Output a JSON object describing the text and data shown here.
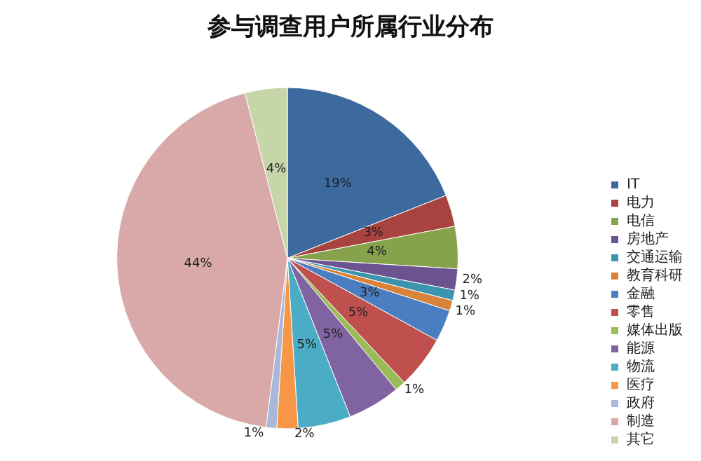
{
  "chart_data": {
    "type": "pie",
    "title": "参与调查用户所属行业分布",
    "categories": [
      "IT",
      "电力",
      "电信",
      "房地产",
      "交通运输",
      "教育科研",
      "金融",
      "零售",
      "媒体出版",
      "能源",
      "物流",
      "医疗",
      "政府",
      "制造",
      "其它"
    ],
    "values": [
      19,
      3,
      4,
      2,
      1,
      1,
      3,
      5,
      1,
      5,
      5,
      2,
      1,
      44,
      4
    ],
    "colors": [
      "#3d6a9e",
      "#a84340",
      "#86a24a",
      "#6b5290",
      "#3d95ad",
      "#d9833a",
      "#4a7ec0",
      "#c0504d",
      "#9bbb59",
      "#8064a2",
      "#4bacc6",
      "#f79646",
      "#a9b8d8",
      "#d8a9a8",
      "#c6d6a8"
    ],
    "value_labels": [
      "19%",
      "3%",
      "4%",
      "2%",
      "1%",
      "1%",
      "3%",
      "5%",
      "1%",
      "5%",
      "5%",
      "2%",
      "1%",
      "44%",
      "4%"
    ],
    "legend": "right"
  }
}
